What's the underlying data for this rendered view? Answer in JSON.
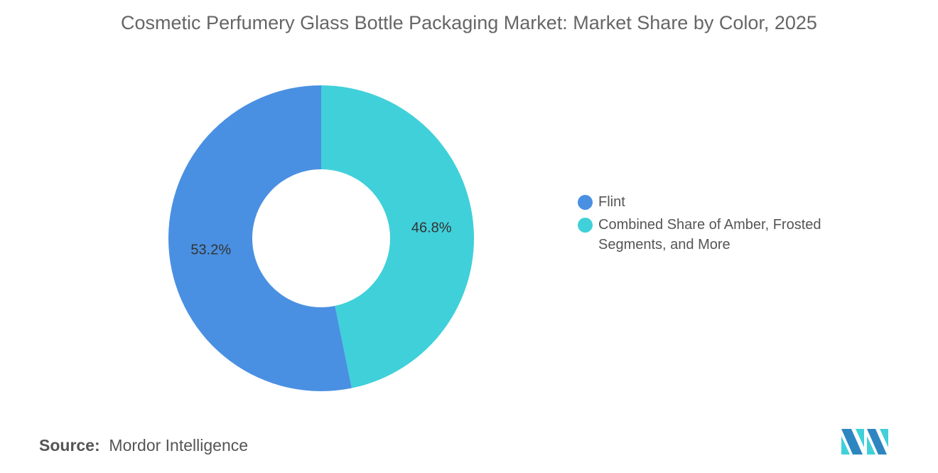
{
  "chart_data": {
    "type": "pie",
    "donut": true,
    "title": "Cosmetic Perfumery Glass Bottle Packaging Market: Market Share by Color, 2025",
    "slices": [
      {
        "label": "Combined Share of Amber, Frosted Segments, and More",
        "value": 46.8,
        "data_label": "46.8%",
        "color": "#40D0DA"
      },
      {
        "label": "Flint",
        "value": 53.2,
        "data_label": "53.2%",
        "color": "#4A90E2"
      }
    ],
    "legend": {
      "placement": "right",
      "entries": [
        "Flint",
        "Combined Share of Amber, Frosted Segments, and More"
      ]
    }
  },
  "source": {
    "label": "Source:",
    "value": "Mordor Intelligence"
  },
  "logo": {
    "text": "Mordor Intelligence",
    "colors": [
      "#2E86C1",
      "#40D0DA"
    ]
  }
}
